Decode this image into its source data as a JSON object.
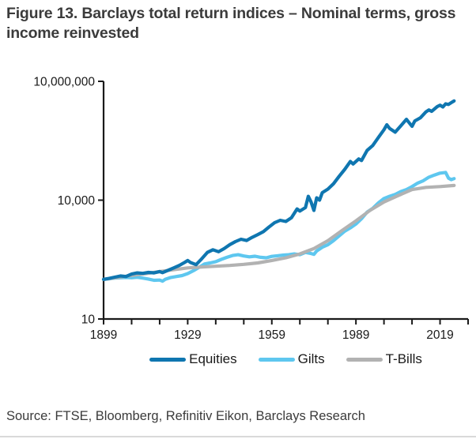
{
  "title": "Figure 13. Barclays total return indices – Nominal terms, gross income reinvested",
  "source": "Source: FTSE, Bloomberg, Refinitiv Eikon, Barclays Research",
  "colors": {
    "equities": "#0f76b0",
    "gilts": "#5ec7ef",
    "tbills": "#b2b2b2",
    "axis": "#1a1a1a"
  },
  "legend": {
    "items": [
      {
        "label": "Equities",
        "color": "#0f76b0"
      },
      {
        "label": "Gilts",
        "color": "#5ec7ef"
      },
      {
        "label": "T-Bills",
        "color": "#b2b2b2"
      }
    ]
  },
  "chart_data": {
    "type": "line",
    "title": "Barclays total return indices – Nominal terms, gross income reinvested",
    "xlabel": "",
    "ylabel": "",
    "x_axis": {
      "min": 1899,
      "max": 2029,
      "tick_interval": 10,
      "labeled_ticks": [
        1899,
        1929,
        1959,
        1989,
        2019
      ]
    },
    "y_axis": {
      "scale": "log",
      "min": 10,
      "max": 10000000,
      "labeled_ticks": [
        10,
        10000,
        10000000
      ],
      "tick_labels": [
        "10",
        "10,000",
        "10,000,000"
      ],
      "grid": false
    },
    "legend_position": "bottom",
    "series": [
      {
        "name": "Gilts",
        "color": "#5ec7ef",
        "points": [
          [
            1899,
            100
          ],
          [
            1901,
            104
          ],
          [
            1903,
            108
          ],
          [
            1905,
            110
          ],
          [
            1907,
            112
          ],
          [
            1909,
            110
          ],
          [
            1911,
            113
          ],
          [
            1913,
            108
          ],
          [
            1915,
            102
          ],
          [
            1917,
            95
          ],
          [
            1919,
            96
          ],
          [
            1920,
            90
          ],
          [
            1921,
            100
          ],
          [
            1923,
            112
          ],
          [
            1925,
            118
          ],
          [
            1927,
            125
          ],
          [
            1929,
            140
          ],
          [
            1931,
            165
          ],
          [
            1933,
            200
          ],
          [
            1935,
            245
          ],
          [
            1937,
            260
          ],
          [
            1939,
            280
          ],
          [
            1941,
            320
          ],
          [
            1943,
            360
          ],
          [
            1945,
            400
          ],
          [
            1947,
            420
          ],
          [
            1949,
            390
          ],
          [
            1951,
            370
          ],
          [
            1953,
            385
          ],
          [
            1955,
            360
          ],
          [
            1957,
            350
          ],
          [
            1959,
            380
          ],
          [
            1961,
            395
          ],
          [
            1963,
            410
          ],
          [
            1965,
            420
          ],
          [
            1967,
            440
          ],
          [
            1969,
            420
          ],
          [
            1971,
            480
          ],
          [
            1973,
            450
          ],
          [
            1974,
            430
          ],
          [
            1975,
            520
          ],
          [
            1977,
            650
          ],
          [
            1979,
            750
          ],
          [
            1981,
            950
          ],
          [
            1983,
            1250
          ],
          [
            1985,
            1650
          ],
          [
            1987,
            2000
          ],
          [
            1989,
            2500
          ],
          [
            1991,
            3400
          ],
          [
            1993,
            5000
          ],
          [
            1995,
            6200
          ],
          [
            1997,
            8500
          ],
          [
            1999,
            11000
          ],
          [
            2001,
            12500
          ],
          [
            2003,
            14000
          ],
          [
            2005,
            16500
          ],
          [
            2007,
            18500
          ],
          [
            2009,
            22000
          ],
          [
            2011,
            27000
          ],
          [
            2013,
            31000
          ],
          [
            2015,
            38000
          ],
          [
            2017,
            43000
          ],
          [
            2019,
            48000
          ],
          [
            2021,
            50000
          ],
          [
            2022,
            36000
          ],
          [
            2023,
            33000
          ],
          [
            2024,
            35000
          ]
        ]
      },
      {
        "name": "T-Bills",
        "color": "#b2b2b2",
        "points": [
          [
            1899,
            100
          ],
          [
            1904,
            112
          ],
          [
            1909,
            126
          ],
          [
            1914,
            140
          ],
          [
            1919,
            158
          ],
          [
            1924,
            175
          ],
          [
            1929,
            195
          ],
          [
            1934,
            205
          ],
          [
            1939,
            215
          ],
          [
            1944,
            225
          ],
          [
            1949,
            240
          ],
          [
            1954,
            260
          ],
          [
            1959,
            300
          ],
          [
            1964,
            350
          ],
          [
            1969,
            440
          ],
          [
            1974,
            600
          ],
          [
            1979,
            950
          ],
          [
            1984,
            1700
          ],
          [
            1989,
            3000
          ],
          [
            1994,
            5500
          ],
          [
            1999,
            9000
          ],
          [
            2004,
            13000
          ],
          [
            2009,
            18500
          ],
          [
            2014,
            21000
          ],
          [
            2019,
            22000
          ],
          [
            2024,
            23500
          ]
        ]
      },
      {
        "name": "Equities",
        "color": "#0f76b0",
        "points": [
          [
            1899,
            100
          ],
          [
            1901,
            106
          ],
          [
            1903,
            114
          ],
          [
            1905,
            122
          ],
          [
            1907,
            118
          ],
          [
            1909,
            136
          ],
          [
            1911,
            146
          ],
          [
            1913,
            142
          ],
          [
            1915,
            150
          ],
          [
            1917,
            146
          ],
          [
            1919,
            158
          ],
          [
            1920,
            148
          ],
          [
            1922,
            170
          ],
          [
            1924,
            195
          ],
          [
            1926,
            225
          ],
          [
            1928,
            270
          ],
          [
            1929,
            300
          ],
          [
            1930,
            268
          ],
          [
            1932,
            235
          ],
          [
            1934,
            330
          ],
          [
            1936,
            480
          ],
          [
            1938,
            560
          ],
          [
            1940,
            500
          ],
          [
            1942,
            600
          ],
          [
            1944,
            750
          ],
          [
            1946,
            900
          ],
          [
            1948,
            1030
          ],
          [
            1950,
            960
          ],
          [
            1952,
            1150
          ],
          [
            1954,
            1350
          ],
          [
            1956,
            1600
          ],
          [
            1958,
            2100
          ],
          [
            1960,
            2700
          ],
          [
            1962,
            3100
          ],
          [
            1964,
            2900
          ],
          [
            1966,
            3600
          ],
          [
            1968,
            6000
          ],
          [
            1969,
            5300
          ],
          [
            1971,
            6500
          ],
          [
            1972,
            12500
          ],
          [
            1973,
            9000
          ],
          [
            1974,
            5500
          ],
          [
            1975,
            11500
          ],
          [
            1976,
            10000
          ],
          [
            1977,
            15500
          ],
          [
            1979,
            19000
          ],
          [
            1981,
            26000
          ],
          [
            1983,
            40000
          ],
          [
            1985,
            60000
          ],
          [
            1987,
            95000
          ],
          [
            1988,
            82000
          ],
          [
            1990,
            110000
          ],
          [
            1991,
            100000
          ],
          [
            1993,
            180000
          ],
          [
            1995,
            240000
          ],
          [
            1997,
            380000
          ],
          [
            1999,
            600000
          ],
          [
            2000,
            800000
          ],
          [
            2001,
            650000
          ],
          [
            2003,
            520000
          ],
          [
            2005,
            750000
          ],
          [
            2007,
            1100000
          ],
          [
            2008,
            900000
          ],
          [
            2009,
            730000
          ],
          [
            2010,
            1000000
          ],
          [
            2012,
            1200000
          ],
          [
            2014,
            1700000
          ],
          [
            2015,
            1900000
          ],
          [
            2016,
            1750000
          ],
          [
            2018,
            2300000
          ],
          [
            2019,
            2500000
          ],
          [
            2020,
            2250000
          ],
          [
            2021,
            2700000
          ],
          [
            2022,
            2600000
          ],
          [
            2023,
            2900000
          ],
          [
            2024,
            3200000
          ]
        ]
      }
    ]
  }
}
